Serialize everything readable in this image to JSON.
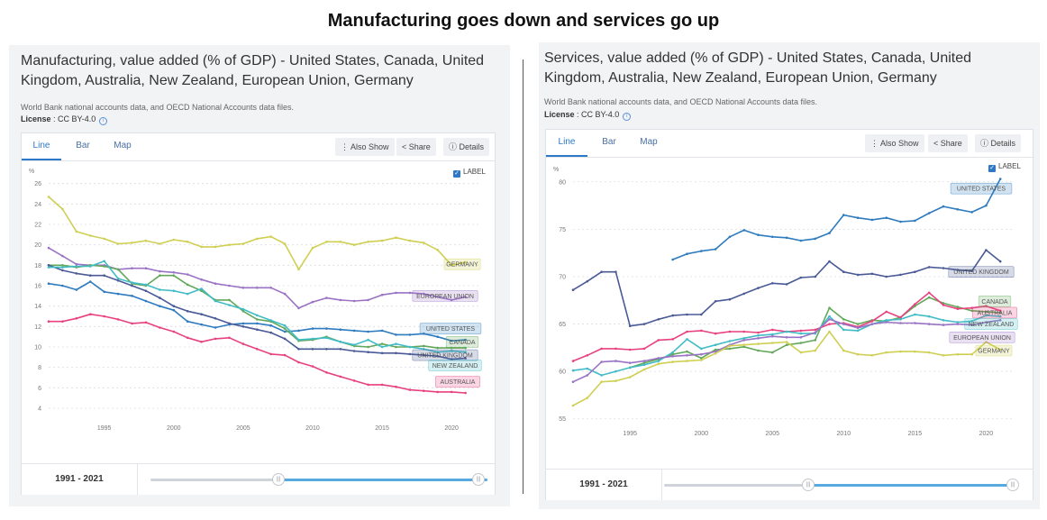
{
  "page_title": "Manufacturing goes down and services go up",
  "ui": {
    "tabs": [
      "Line",
      "Bar",
      "Map"
    ],
    "also_show": "Also Show",
    "share": "Share",
    "details": "Details",
    "label_checkbox": "LABEL",
    "source": "World Bank national accounts data, and OECD National Accounts data files.",
    "license_label": "License",
    "license_value": ": CC BY-4.0",
    "range": "1991 - 2021",
    "unit": "%"
  },
  "colors": {
    "UNITED STATES": "#2e7bbf",
    "UNITED KINGDOM": "#4a5a96",
    "CANADA": "#63a85a",
    "AUSTRALIA": "#e8417f",
    "NEW ZEALAND": "#41bcc6",
    "EUROPEAN UNION": "#9a73c4",
    "GERMANY": "#cfcf54"
  },
  "panels": {
    "left": {
      "title": "Manufacturing, value added (% of GDP) - United States, Canada, United Kingdom, Australia, New Zealand, European Union, Germany"
    },
    "right": {
      "title": "Services, value added (% of GDP) - United States, Canada, United Kingdom, Australia, New Zealand, European Union, Germany"
    }
  },
  "chart_data": [
    {
      "type": "line",
      "title": "Manufacturing, value added (% of GDP)",
      "ylabel": "%",
      "x": [
        1991,
        1992,
        1993,
        1994,
        1995,
        1996,
        1997,
        1998,
        1999,
        2000,
        2001,
        2002,
        2003,
        2004,
        2005,
        2006,
        2007,
        2008,
        2009,
        2010,
        2011,
        2012,
        2013,
        2014,
        2015,
        2016,
        2017,
        2018,
        2019,
        2020,
        2021
      ],
      "xticks": [
        1995,
        2000,
        2005,
        2010,
        2015,
        2020
      ],
      "yticks": [
        4,
        6,
        8,
        10,
        12,
        14,
        16,
        18,
        20,
        22,
        24,
        26
      ],
      "ylim": [
        4,
        26.5
      ],
      "xlim": [
        1991,
        2022
      ],
      "series": [
        {
          "name": "GERMANY",
          "values": [
            24.7,
            23.5,
            21.3,
            20.9,
            20.6,
            20.1,
            20.2,
            20.4,
            20.1,
            20.5,
            20.3,
            19.8,
            19.8,
            20.0,
            20.1,
            20.6,
            20.8,
            20.1,
            17.6,
            19.7,
            20.3,
            20.3,
            20.0,
            20.3,
            20.4,
            20.7,
            20.4,
            20.2,
            19.5,
            18.0,
            18.3
          ]
        },
        {
          "name": "EUROPEAN UNION",
          "values": [
            19.7,
            18.9,
            18.1,
            18.0,
            18.0,
            17.6,
            17.7,
            17.7,
            17.4,
            17.3,
            17.1,
            16.6,
            16.2,
            16.0,
            15.8,
            15.8,
            15.8,
            15.2,
            13.8,
            14.4,
            14.8,
            14.6,
            14.5,
            14.6,
            15.1,
            15.3,
            15.3,
            15.2,
            14.9,
            14.6,
            14.9
          ]
        },
        {
          "name": "UNITED STATES",
          "values": [
            16.2,
            16.0,
            15.6,
            16.4,
            15.4,
            15.2,
            15.0,
            14.5,
            14.0,
            13.6,
            12.5,
            12.2,
            11.9,
            12.2,
            12.3,
            12.3,
            12.1,
            11.5,
            11.6,
            11.8,
            11.8,
            11.7,
            11.6,
            11.5,
            11.6,
            11.2,
            11.2,
            11.3,
            11.0,
            10.6,
            10.7
          ]
        },
        {
          "name": "CANADA",
          "values": [
            18.0,
            18.0,
            17.8,
            18.0,
            17.9,
            17.6,
            16.2,
            16.0,
            17.0,
            17.0,
            16.1,
            15.5,
            14.6,
            14.6,
            13.5,
            12.7,
            12.5,
            11.8,
            10.6,
            10.7,
            11.0,
            10.5,
            10.1,
            10.0,
            10.3,
            10.0,
            10.0,
            10.1,
            9.9,
            9.9,
            9.9
          ]
        },
        {
          "name": "UNITED KINGDOM",
          "values": [
            18.0,
            17.5,
            17.2,
            17.0,
            17.0,
            16.5,
            16.0,
            15.5,
            14.8,
            14.0,
            13.5,
            13.2,
            12.8,
            12.3,
            12.0,
            11.7,
            11.4,
            10.8,
            9.8,
            9.8,
            9.8,
            9.8,
            9.6,
            9.5,
            9.4,
            9.4,
            9.3,
            9.2,
            9.1,
            8.8,
            8.9
          ]
        },
        {
          "name": "NEW ZEALAND",
          "values": [
            17.8,
            17.8,
            17.9,
            17.9,
            18.4,
            16.7,
            16.3,
            16.1,
            15.6,
            15.5,
            15.2,
            15.7,
            14.5,
            14.1,
            13.7,
            13.1,
            12.6,
            12.1,
            10.7,
            10.8,
            10.9,
            10.5,
            10.2,
            10.7,
            10.0,
            10.3,
            10.0,
            9.8,
            9.5,
            9.6,
            9.5
          ]
        },
        {
          "name": "AUSTRALIA",
          "values": [
            12.5,
            12.5,
            12.8,
            13.2,
            13.0,
            12.7,
            12.3,
            12.4,
            11.9,
            11.5,
            10.9,
            10.5,
            10.8,
            10.9,
            10.3,
            9.8,
            9.3,
            9.2,
            8.5,
            8.1,
            7.5,
            7.1,
            6.7,
            6.3,
            6.3,
            6.1,
            5.8,
            5.7,
            5.6,
            5.6,
            5.5
          ]
        }
      ]
    },
    {
      "type": "line",
      "title": "Services, value added (% of GDP)",
      "ylabel": "%",
      "x": [
        1991,
        1992,
        1993,
        1994,
        1995,
        1996,
        1997,
        1998,
        1999,
        2000,
        2001,
        2002,
        2003,
        2004,
        2005,
        2006,
        2007,
        2008,
        2009,
        2010,
        2011,
        2012,
        2013,
        2014,
        2015,
        2016,
        2017,
        2018,
        2019,
        2020,
        2021
      ],
      "xticks": [
        1995,
        2000,
        2005,
        2010,
        2015,
        2020
      ],
      "yticks": [
        55,
        60,
        65,
        70,
        75,
        80
      ],
      "ylim": [
        54.5,
        81.5
      ],
      "xlim": [
        1991,
        2022
      ],
      "series": [
        {
          "name": "UNITED STATES",
          "values": [
            null,
            null,
            null,
            null,
            null,
            null,
            null,
            71.8,
            72.4,
            72.7,
            72.9,
            74.2,
            74.9,
            74.4,
            74.2,
            74.1,
            73.8,
            74.0,
            74.6,
            76.5,
            76.2,
            76.0,
            76.2,
            75.8,
            75.9,
            76.7,
            77.4,
            77.1,
            76.8,
            77.5,
            80.3
          ]
        },
        {
          "name": "UNITED KINGDOM",
          "values": [
            68.6,
            69.5,
            70.5,
            70.5,
            64.8,
            65.0,
            65.5,
            65.9,
            66.0,
            66.0,
            67.4,
            67.6,
            68.2,
            68.8,
            69.3,
            69.2,
            69.9,
            70.0,
            71.6,
            70.5,
            70.2,
            70.3,
            70.0,
            70.2,
            70.5,
            71.0,
            70.9,
            70.7,
            70.6,
            72.8,
            71.6
          ]
        },
        {
          "name": "CANADA",
          "values": [
            null,
            null,
            null,
            null,
            60.4,
            60.9,
            61.3,
            61.8,
            62.1,
            61.4,
            62.3,
            62.4,
            62.6,
            62.2,
            62.0,
            62.8,
            63.0,
            63.3,
            66.7,
            65.5,
            65.0,
            65.4,
            65.3,
            65.7,
            66.9,
            67.8,
            67.2,
            66.8,
            66.4,
            66.3,
            66.2
          ]
        },
        {
          "name": "AUSTRALIA",
          "values": [
            61.1,
            61.7,
            62.4,
            62.4,
            62.3,
            62.4,
            63.3,
            63.4,
            64.2,
            64.3,
            64.0,
            64.2,
            64.2,
            64.1,
            64.4,
            64.2,
            64.3,
            64.4,
            65.0,
            65.1,
            64.7,
            65.3,
            66.3,
            65.7,
            67.1,
            68.3,
            67.0,
            66.6,
            66.7,
            66.9,
            66.4
          ]
        },
        {
          "name": "NEW ZEALAND",
          "values": [
            60.1,
            60.3,
            59.6,
            60.0,
            60.4,
            60.7,
            61.1,
            62.0,
            63.4,
            62.4,
            62.8,
            63.2,
            63.5,
            63.8,
            63.9,
            64.2,
            64.0,
            64.0,
            65.8,
            64.4,
            64.3,
            65.0,
            65.4,
            65.5,
            66.0,
            65.8,
            65.4,
            65.2,
            65.3,
            65.9,
            65.8
          ]
        },
        {
          "name": "EUROPEAN UNION",
          "values": [
            58.9,
            59.6,
            61.0,
            61.1,
            60.9,
            61.1,
            61.4,
            61.6,
            61.7,
            61.8,
            62.1,
            62.8,
            63.3,
            63.5,
            63.7,
            63.6,
            63.6,
            64.1,
            65.5,
            65.0,
            64.6,
            65.0,
            65.2,
            65.1,
            65.1,
            65.0,
            64.9,
            65.0,
            64.9,
            65.2,
            65.4
          ]
        },
        {
          "name": "GERMANY",
          "values": [
            56.4,
            57.2,
            58.9,
            59.0,
            59.4,
            60.2,
            60.8,
            61.0,
            61.1,
            61.2,
            61.9,
            62.7,
            62.8,
            62.9,
            63.0,
            63.1,
            62.0,
            62.2,
            64.2,
            62.2,
            61.8,
            61.7,
            62.0,
            62.1,
            62.1,
            62.0,
            61.7,
            61.8,
            61.8,
            63.1,
            62.3
          ]
        }
      ]
    }
  ]
}
